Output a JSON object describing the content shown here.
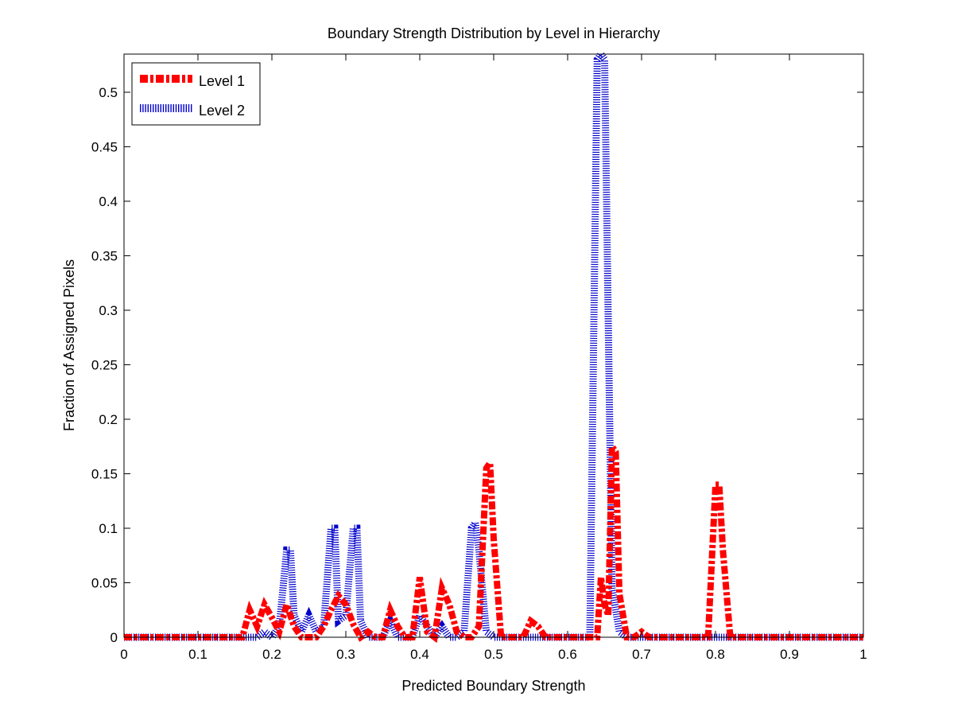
{
  "chart_data": {
    "type": "line",
    "title": "Boundary Strength Distribution by Level in Hierarchy",
    "xlabel": "Predicted Boundary Strength",
    "ylabel": "Fraction of Assigned Pixels",
    "xlim": [
      0,
      1
    ],
    "ylim": [
      0,
      0.535
    ],
    "xticks": [
      0,
      0.1,
      0.2,
      0.3,
      0.4,
      0.5,
      0.6,
      0.7,
      0.8,
      0.9,
      1
    ],
    "xtick_labels": [
      "0",
      "0.1",
      "0.2",
      "0.3",
      "0.4",
      "0.5",
      "0.6",
      "0.7",
      "0.8",
      "0.9",
      "1"
    ],
    "yticks": [
      0,
      0.05,
      0.1,
      0.15,
      0.2,
      0.25,
      0.3,
      0.35,
      0.4,
      0.45,
      0.5
    ],
    "ytick_labels": [
      "0",
      "0.05",
      "0.1",
      "0.15",
      "0.2",
      "0.25",
      "0.3",
      "0.35",
      "0.4",
      "0.45",
      "0.5"
    ],
    "grid": false,
    "legend_position": "top-left",
    "legend": [
      "Level 1",
      "Level 2"
    ],
    "series": [
      {
        "name": "Level 1",
        "color": "#ff0000",
        "style": "dash-dot-thick",
        "x": [
          0.0,
          0.16,
          0.17,
          0.18,
          0.19,
          0.2,
          0.21,
          0.22,
          0.23,
          0.24,
          0.25,
          0.26,
          0.27,
          0.28,
          0.29,
          0.3,
          0.31,
          0.32,
          0.33,
          0.34,
          0.35,
          0.36,
          0.37,
          0.38,
          0.39,
          0.4,
          0.41,
          0.42,
          0.43,
          0.44,
          0.45,
          0.46,
          0.47,
          0.48,
          0.49,
          0.495,
          0.5,
          0.51,
          0.52,
          0.53,
          0.54,
          0.55,
          0.56,
          0.57,
          0.6,
          0.63,
          0.64,
          0.645,
          0.65,
          0.655,
          0.66,
          0.665,
          0.67,
          0.68,
          0.69,
          0.7,
          0.71,
          0.72,
          0.78,
          0.79,
          0.8,
          0.805,
          0.81,
          0.82,
          0.83,
          1.0
        ],
        "y": [
          0.0,
          0.0,
          0.025,
          0.01,
          0.03,
          0.018,
          0.005,
          0.03,
          0.01,
          0.0,
          0.0,
          0.0,
          0.01,
          0.025,
          0.038,
          0.03,
          0.012,
          0.0,
          0.005,
          0.0,
          0.0,
          0.025,
          0.01,
          0.0,
          0.0,
          0.055,
          0.005,
          0.0,
          0.045,
          0.03,
          0.005,
          0.0,
          0.0,
          0.01,
          0.155,
          0.16,
          0.09,
          0.0,
          0.0,
          0.0,
          0.0,
          0.015,
          0.01,
          0.0,
          0.0,
          0.0,
          0.0,
          0.055,
          0.03,
          0.02,
          0.175,
          0.17,
          0.04,
          0.0,
          0.0,
          0.005,
          0.0,
          0.0,
          0.0,
          0.0,
          0.14,
          0.14,
          0.08,
          0.0,
          0.0,
          0.0
        ]
      },
      {
        "name": "Level 2",
        "color": "#0000cc",
        "style": "dotted",
        "x": [
          0.0,
          0.18,
          0.19,
          0.2,
          0.21,
          0.22,
          0.225,
          0.23,
          0.24,
          0.25,
          0.26,
          0.27,
          0.28,
          0.285,
          0.29,
          0.3,
          0.31,
          0.315,
          0.32,
          0.33,
          0.34,
          0.35,
          0.36,
          0.37,
          0.38,
          0.39,
          0.4,
          0.41,
          0.42,
          0.43,
          0.44,
          0.45,
          0.46,
          0.47,
          0.475,
          0.48,
          0.49,
          0.5,
          0.6,
          0.63,
          0.64,
          0.645,
          0.65,
          0.66,
          0.67,
          0.68,
          1.0
        ],
        "y": [
          0.0,
          0.0,
          0.005,
          0.0,
          0.01,
          0.08,
          0.08,
          0.02,
          0.005,
          0.02,
          0.005,
          0.01,
          0.1,
          0.1,
          0.015,
          0.02,
          0.1,
          0.1,
          0.015,
          0.0,
          0.0,
          0.0,
          0.015,
          0.0,
          0.0,
          0.0,
          0.02,
          0.01,
          0.0,
          0.01,
          0.0,
          0.0,
          0.005,
          0.1,
          0.105,
          0.08,
          0.005,
          0.0,
          0.0,
          0.0,
          0.53,
          0.535,
          0.53,
          0.045,
          0.005,
          0.0,
          0.0
        ]
      }
    ]
  }
}
